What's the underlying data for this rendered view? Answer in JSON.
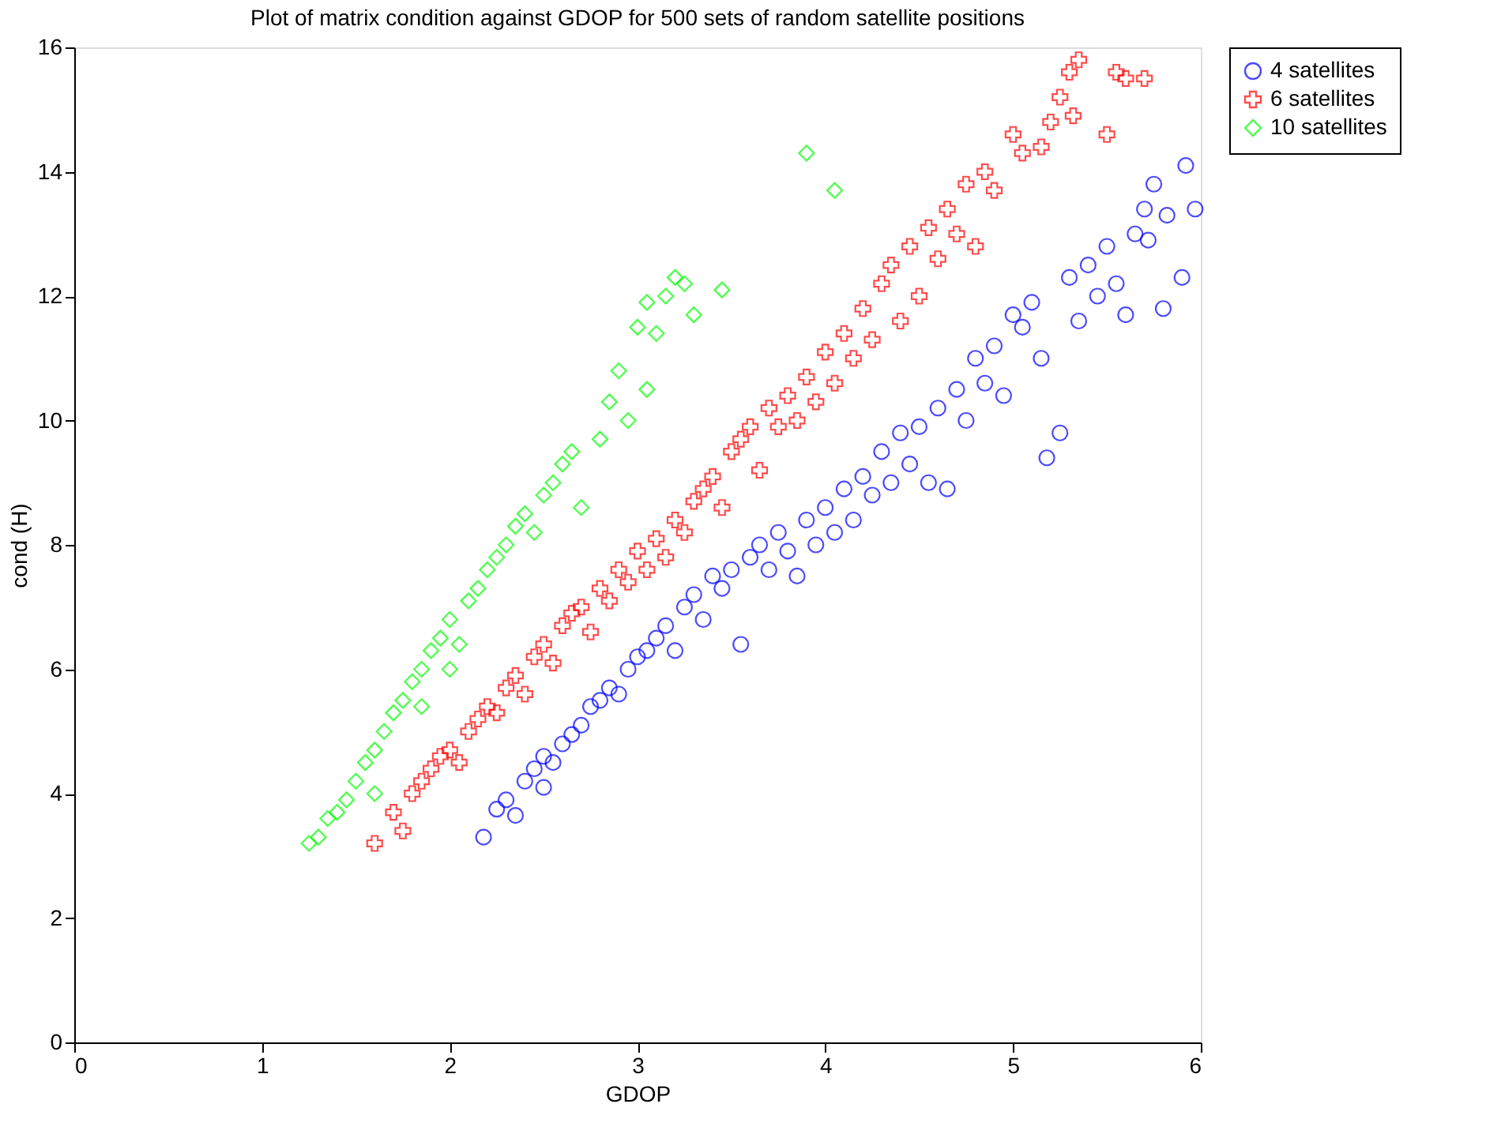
{
  "chart_data": {
    "type": "scatter",
    "title": "Plot of matrix condition against GDOP for 500 sets of random satellite positions",
    "xlabel": "GDOP",
    "ylabel": "cond (H)",
    "xlim": [
      0,
      6
    ],
    "ylim": [
      0,
      16
    ],
    "xticks": [
      0,
      1,
      2,
      3,
      4,
      5,
      6
    ],
    "yticks": [
      0,
      2,
      4,
      6,
      8,
      10,
      12,
      14,
      16
    ],
    "grid": false,
    "legend": "right",
    "series": [
      {
        "name": "4 satellites",
        "color": "#0000ff",
        "marker": "circle",
        "x": [
          2.18,
          2.25,
          2.3,
          2.35,
          2.4,
          2.45,
          2.5,
          2.5,
          2.55,
          2.6,
          2.65,
          2.7,
          2.75,
          2.8,
          2.85,
          2.9,
          2.95,
          3.0,
          3.05,
          3.1,
          3.15,
          3.2,
          3.25,
          3.3,
          3.35,
          3.4,
          3.45,
          3.5,
          3.55,
          3.6,
          3.65,
          3.7,
          3.75,
          3.8,
          3.85,
          3.9,
          3.95,
          4.0,
          4.05,
          4.1,
          4.15,
          4.2,
          4.25,
          4.3,
          4.35,
          4.4,
          4.45,
          4.5,
          4.55,
          4.6,
          4.65,
          4.7,
          4.75,
          4.8,
          4.85,
          4.9,
          4.95,
          5.0,
          5.05,
          5.1,
          5.15,
          5.18,
          5.25,
          5.3,
          5.35,
          5.4,
          5.45,
          5.5,
          5.55,
          5.6,
          5.65,
          5.7,
          5.72,
          5.75,
          5.8,
          5.82,
          5.9,
          5.92,
          5.97
        ],
        "values": [
          3.3,
          3.75,
          3.9,
          3.65,
          4.2,
          4.4,
          4.6,
          4.1,
          4.5,
          4.8,
          4.95,
          5.1,
          5.4,
          5.5,
          5.7,
          5.6,
          6.0,
          6.2,
          6.3,
          6.5,
          6.7,
          6.3,
          7.0,
          7.2,
          6.8,
          7.5,
          7.3,
          7.6,
          6.4,
          7.8,
          8.0,
          7.6,
          8.2,
          7.9,
          7.5,
          8.4,
          8.0,
          8.6,
          8.2,
          8.9,
          8.4,
          9.1,
          8.8,
          9.5,
          9.0,
          9.8,
          9.3,
          9.9,
          9.0,
          10.2,
          8.9,
          10.5,
          10.0,
          11.0,
          10.6,
          11.2,
          10.4,
          11.7,
          11.5,
          11.9,
          11.0,
          9.4,
          9.8,
          12.3,
          11.6,
          12.5,
          12.0,
          12.8,
          12.2,
          11.7,
          13.0,
          13.4,
          12.9,
          13.8,
          11.8,
          13.3,
          12.3,
          14.1,
          13.4
        ]
      },
      {
        "name": "6 satellites",
        "color": "#ff0000",
        "marker": "cross",
        "x": [
          1.6,
          1.7,
          1.75,
          1.8,
          1.85,
          1.9,
          1.95,
          2.0,
          2.05,
          2.1,
          2.15,
          2.2,
          2.25,
          2.3,
          2.35,
          2.4,
          2.45,
          2.5,
          2.55,
          2.6,
          2.65,
          2.7,
          2.75,
          2.8,
          2.85,
          2.9,
          2.95,
          3.0,
          3.05,
          3.1,
          3.15,
          3.2,
          3.25,
          3.3,
          3.35,
          3.4,
          3.45,
          3.5,
          3.55,
          3.6,
          3.65,
          3.7,
          3.75,
          3.8,
          3.85,
          3.9,
          3.95,
          4.0,
          4.05,
          4.1,
          4.15,
          4.2,
          4.25,
          4.3,
          4.35,
          4.4,
          4.45,
          4.5,
          4.55,
          4.6,
          4.65,
          4.7,
          4.75,
          4.8,
          4.85,
          4.9,
          5.0,
          5.05,
          5.15,
          5.2,
          5.25,
          5.3,
          5.32,
          5.35,
          5.5,
          5.55,
          5.6,
          5.7
        ],
        "values": [
          3.2,
          3.7,
          3.4,
          4.0,
          4.2,
          4.4,
          4.6,
          4.7,
          4.5,
          5.0,
          5.2,
          5.4,
          5.3,
          5.7,
          5.9,
          5.6,
          6.2,
          6.4,
          6.1,
          6.7,
          6.9,
          7.0,
          6.6,
          7.3,
          7.1,
          7.6,
          7.4,
          7.9,
          7.6,
          8.1,
          7.8,
          8.4,
          8.2,
          8.7,
          8.9,
          9.1,
          8.6,
          9.5,
          9.7,
          9.9,
          9.2,
          10.2,
          9.9,
          10.4,
          10.0,
          10.7,
          10.3,
          11.1,
          10.6,
          11.4,
          11.0,
          11.8,
          11.3,
          12.2,
          12.5,
          11.6,
          12.8,
          12.0,
          13.1,
          12.6,
          13.4,
          13.0,
          13.8,
          12.8,
          14.0,
          13.7,
          14.6,
          14.3,
          14.4,
          14.8,
          15.2,
          15.6,
          14.9,
          15.8,
          14.6,
          15.6,
          15.5,
          15.5
        ]
      },
      {
        "name": "10 satellites",
        "color": "#00ff00",
        "marker": "diamond",
        "x": [
          1.25,
          1.3,
          1.35,
          1.4,
          1.45,
          1.5,
          1.55,
          1.6,
          1.65,
          1.7,
          1.75,
          1.8,
          1.85,
          1.9,
          1.95,
          2.0,
          2.05,
          2.1,
          2.15,
          2.2,
          2.25,
          2.3,
          2.35,
          2.4,
          2.45,
          2.5,
          2.55,
          2.6,
          2.65,
          2.7,
          2.8,
          2.85,
          2.9,
          2.95,
          3.0,
          3.05,
          3.1,
          3.15,
          3.2,
          3.25,
          3.45,
          3.9,
          4.05,
          1.85,
          1.6,
          2.0,
          3.05,
          3.3
        ],
        "values": [
          3.2,
          3.3,
          3.6,
          3.7,
          3.9,
          4.2,
          4.5,
          4.7,
          5.0,
          5.3,
          5.5,
          5.8,
          6.0,
          6.3,
          6.5,
          6.8,
          6.4,
          7.1,
          7.3,
          7.6,
          7.8,
          8.0,
          8.3,
          8.5,
          8.2,
          8.8,
          9.0,
          9.3,
          9.5,
          8.6,
          9.7,
          10.3,
          10.8,
          10.0,
          11.5,
          11.9,
          11.4,
          12.0,
          12.3,
          12.2,
          12.1,
          14.3,
          13.7,
          5.4,
          4.0,
          6.0,
          10.5,
          11.7
        ]
      }
    ]
  }
}
